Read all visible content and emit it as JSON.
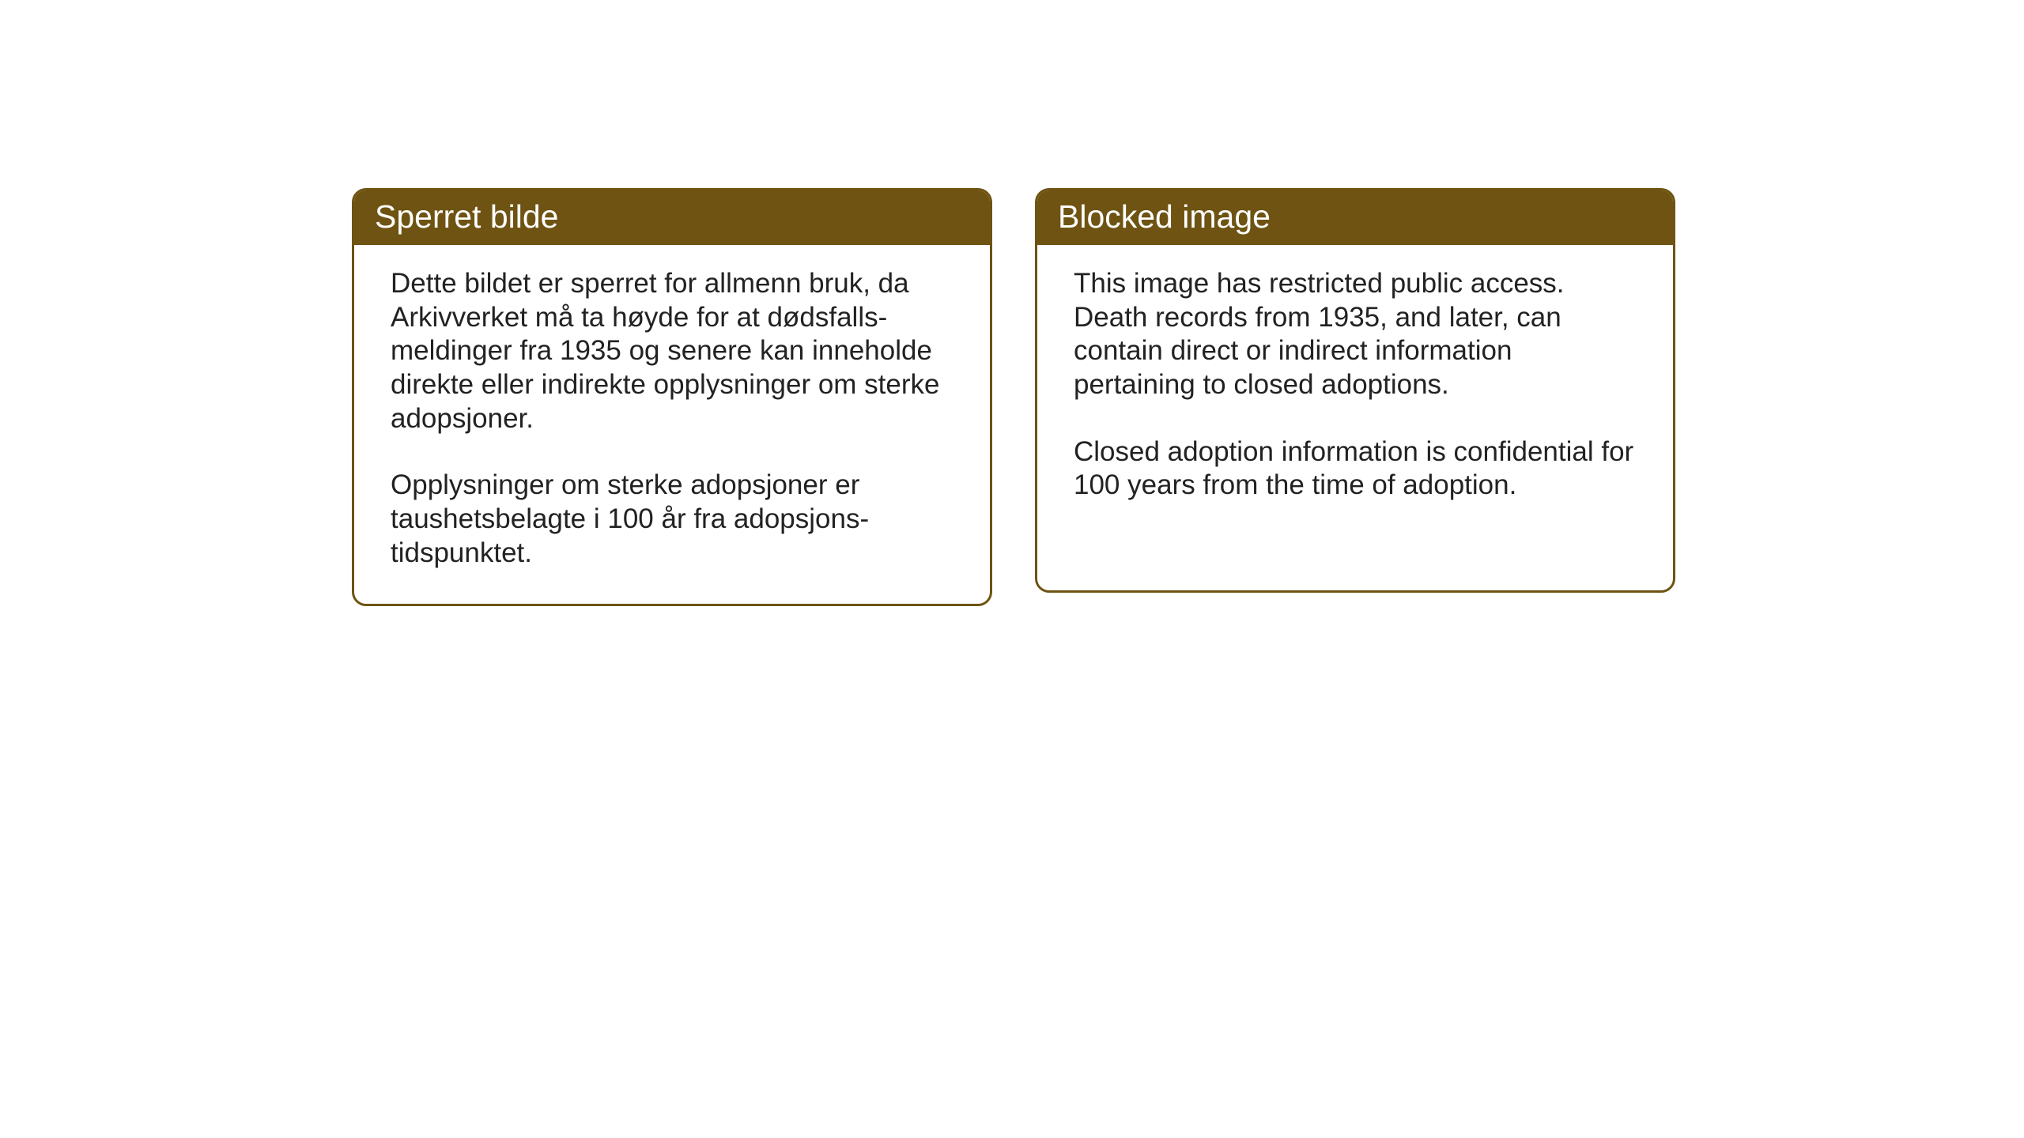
{
  "layout": {
    "background_color": "#ffffff",
    "card_border_color": "#6e5312",
    "card_border_width": 3,
    "card_border_radius": 18,
    "header_background_color": "#6e5312",
    "header_text_color": "#ffffff",
    "body_text_color": "#222222",
    "header_fontsize": 41,
    "body_fontsize": 35
  },
  "cards": {
    "left": {
      "title": "Sperret bilde",
      "paragraph1": "Dette bildet er sperret for allmenn bruk, da Arkivverket må ta høyde for at dødsfalls-meldinger fra 1935 og senere kan inneholde direkte eller indirekte opplysninger om sterke adopsjoner.",
      "paragraph2": "Opplysninger om sterke adopsjoner er taushetsbelagte i 100 år fra adopsjons-tidspunktet."
    },
    "right": {
      "title": "Blocked image",
      "paragraph1": "This image has restricted public access. Death records from 1935, and later, can contain direct or indirect information pertaining to closed adoptions.",
      "paragraph2": "Closed adoption information is confidential for 100 years from the time of adoption."
    }
  }
}
